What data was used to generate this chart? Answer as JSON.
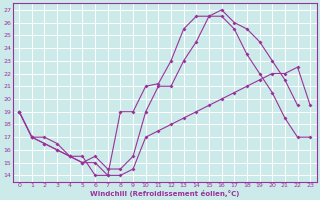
{
  "xlabel": "Windchill (Refroidissement éolien,°C)",
  "bg_color": "#cceaea",
  "line_color": "#993399",
  "grid_color": "#ffffff",
  "xlim": [
    -0.5,
    23.5
  ],
  "ylim": [
    13.5,
    27.5
  ],
  "xticks": [
    0,
    1,
    2,
    3,
    4,
    5,
    6,
    7,
    8,
    9,
    10,
    11,
    12,
    13,
    14,
    15,
    16,
    17,
    18,
    19,
    20,
    21,
    22,
    23
  ],
  "yticks": [
    14,
    15,
    16,
    17,
    18,
    19,
    20,
    21,
    22,
    23,
    24,
    25,
    26,
    27
  ],
  "line1_x": [
    0,
    1,
    2,
    3,
    4,
    5,
    6,
    7,
    8,
    9,
    10,
    11,
    12,
    13,
    14,
    15,
    16,
    17,
    18,
    19,
    20,
    21,
    22
  ],
  "line1_y": [
    19,
    17,
    16.5,
    16,
    15.5,
    15.5,
    14.0,
    14.0,
    19.0,
    19.0,
    21.0,
    21.2,
    23.0,
    25.5,
    26.5,
    26.5,
    27.0,
    26.0,
    25.5,
    24.5,
    23.0,
    21.5,
    19.5
  ],
  "line2_x": [
    0,
    1,
    2,
    3,
    4,
    5,
    6,
    7,
    8,
    9,
    10,
    11,
    12,
    13,
    14,
    15,
    16,
    17,
    18,
    19,
    20,
    21,
    22,
    23
  ],
  "line2_y": [
    19,
    17,
    17,
    16.5,
    15.5,
    15.0,
    15.0,
    14.0,
    14.0,
    14.5,
    17.0,
    17.5,
    18.0,
    18.5,
    19.0,
    19.5,
    20.0,
    20.5,
    21.0,
    21.5,
    22.0,
    22.0,
    22.5,
    19.5
  ],
  "line3_x": [
    0,
    1,
    2,
    3,
    4,
    5,
    6,
    7,
    8,
    9,
    10,
    11,
    12,
    13,
    14,
    15,
    16,
    17,
    18,
    19,
    20,
    21,
    22,
    23
  ],
  "line3_y": [
    19,
    17,
    16.5,
    16,
    15.5,
    15.0,
    15.5,
    14.5,
    14.5,
    15.5,
    19.0,
    21.0,
    21.0,
    23.0,
    24.5,
    26.5,
    26.5,
    25.5,
    23.5,
    22.0,
    20.5,
    18.5,
    17.0,
    17.0
  ]
}
